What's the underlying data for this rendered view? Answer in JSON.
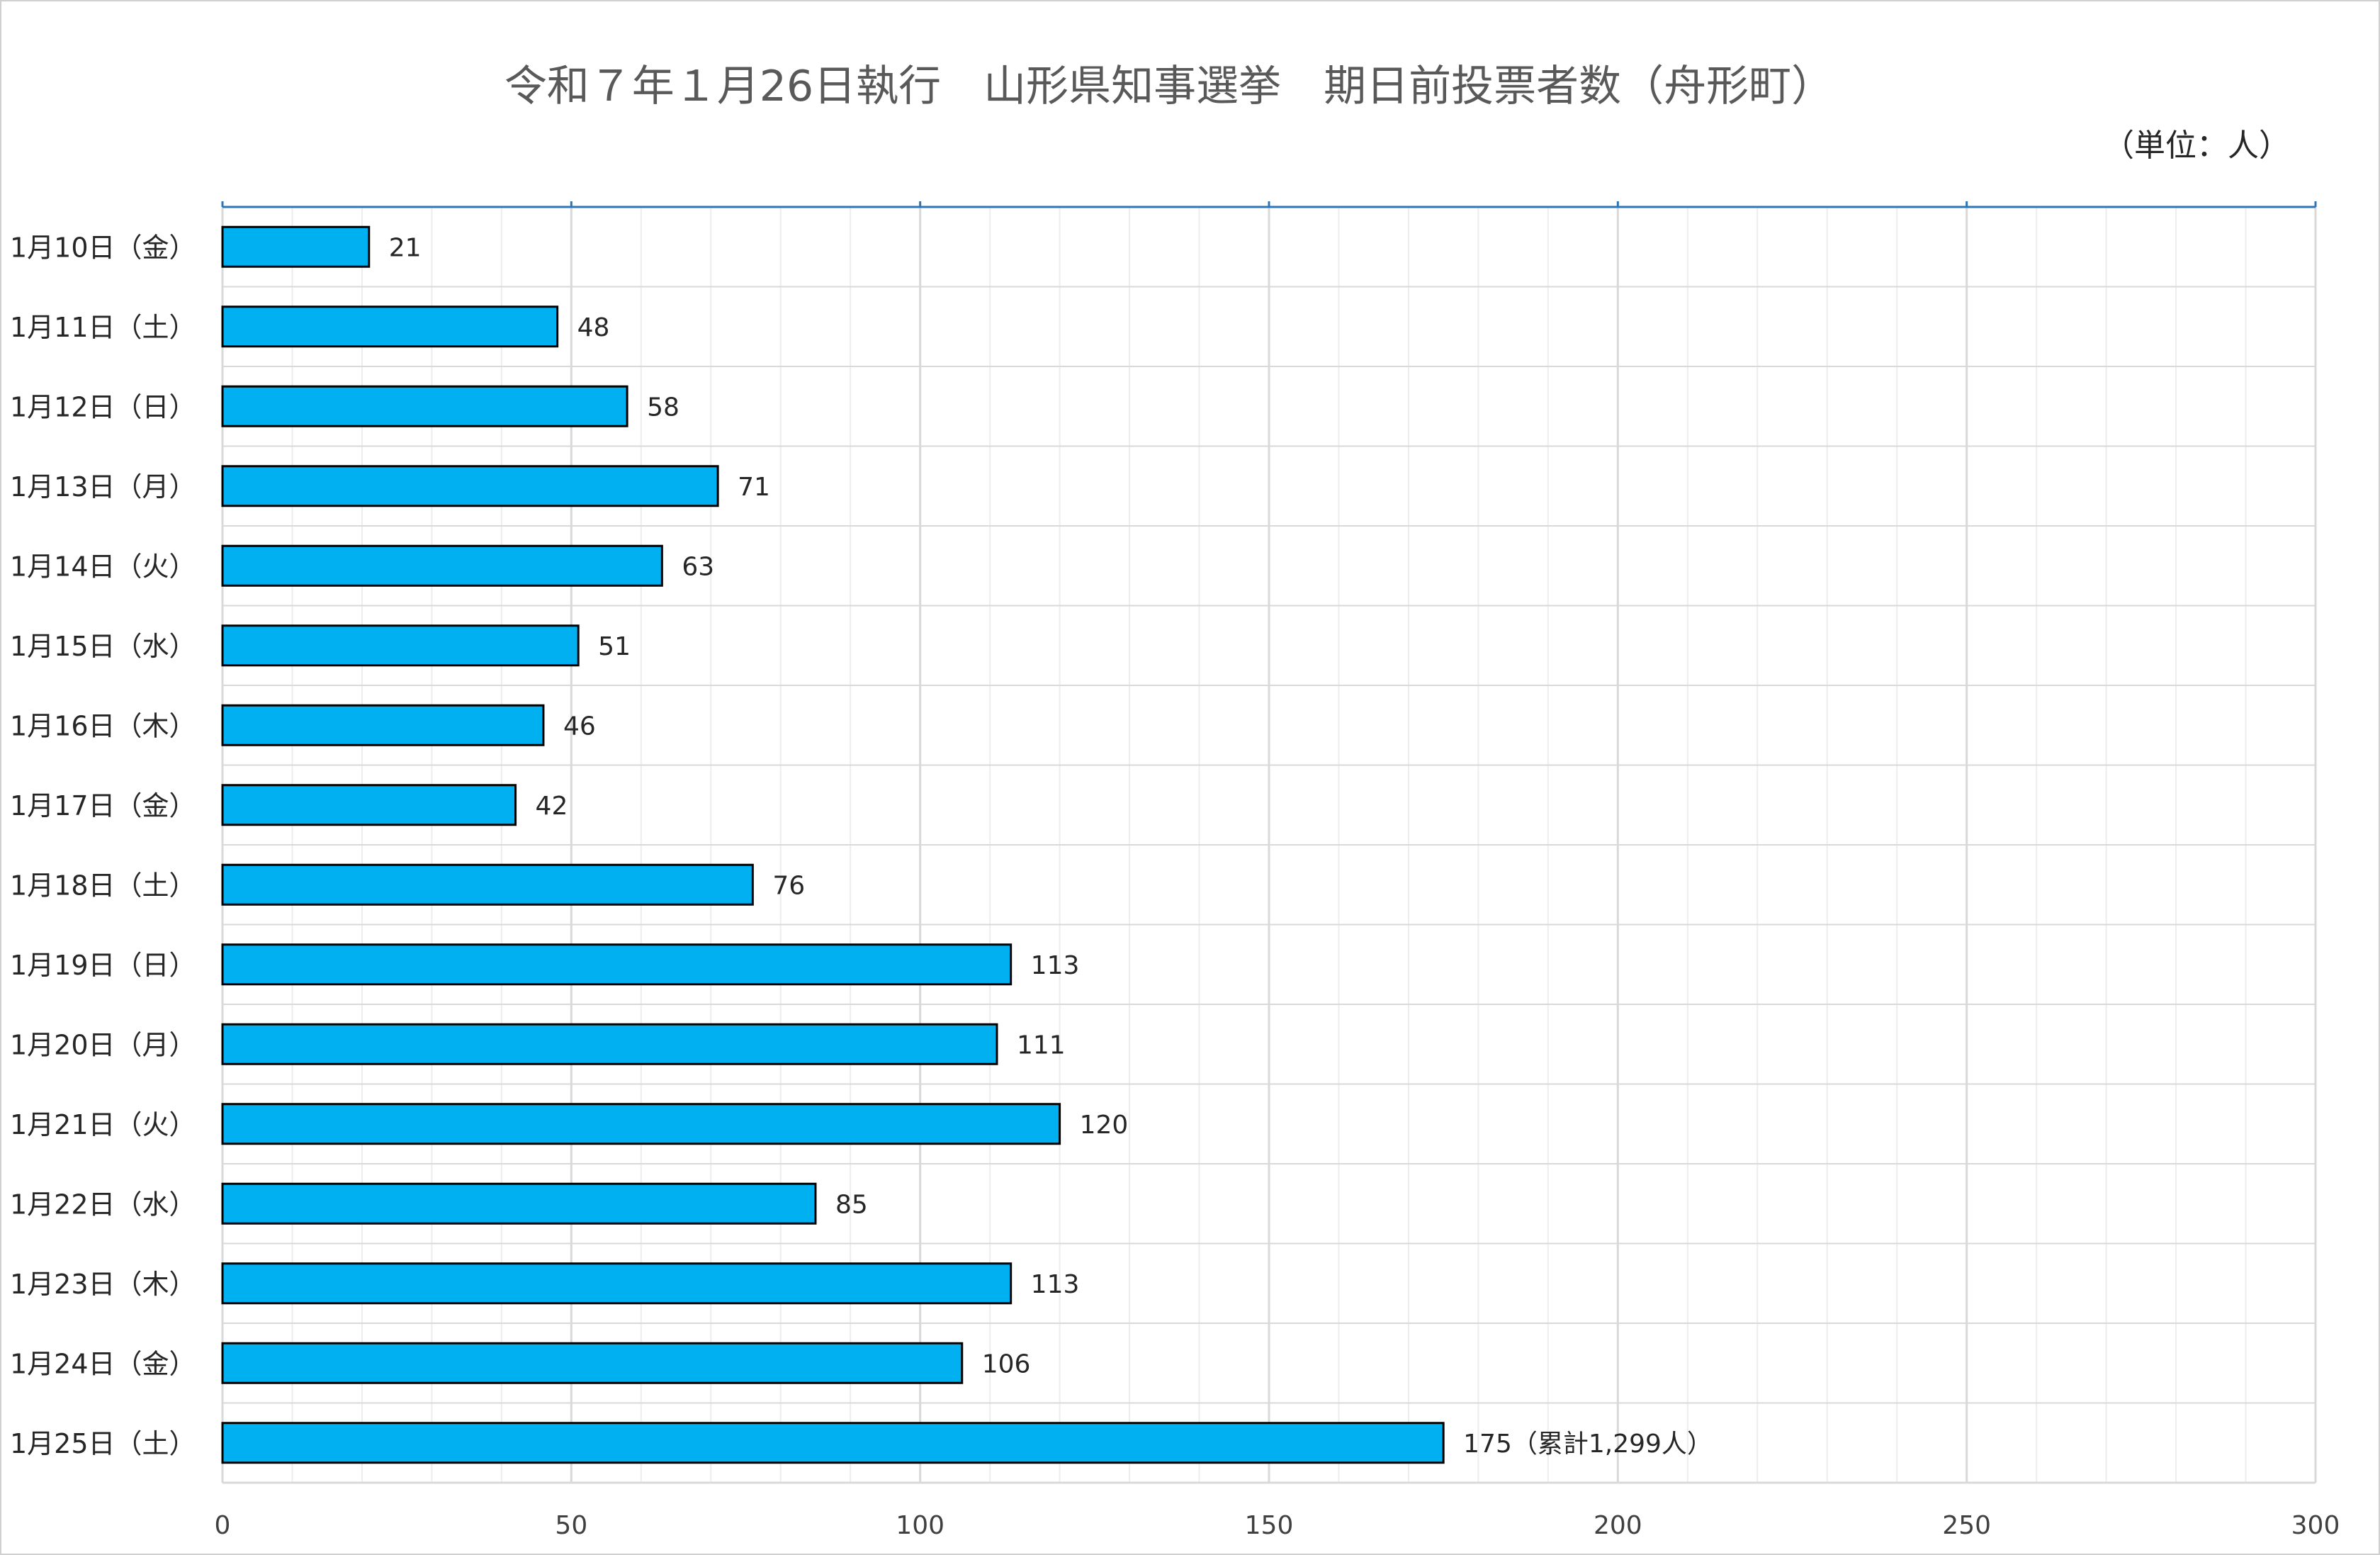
{
  "chart_data": {
    "type": "bar",
    "orientation": "horizontal",
    "title": "令和７年１月26日執行　山形県知事選挙　期日前投票者数（舟形町）",
    "unit_note": "（単位：人）",
    "categories": [
      "1月10日（金）",
      "1月11日（土）",
      "1月12日（日）",
      "1月13日（月）",
      "1月14日（火）",
      "1月15日（水）",
      "1月16日（木）",
      "1月17日（金）",
      "1月18日（土）",
      "1月19日（日）",
      "1月20日（月）",
      "1月21日（火）",
      "1月22日（水）",
      "1月23日（木）",
      "1月24日（金）",
      "1月25日（土）"
    ],
    "values": [
      21,
      48,
      58,
      71,
      63,
      51,
      46,
      42,
      76,
      113,
      111,
      120,
      85,
      113,
      106,
      175
    ],
    "data_labels": [
      "21",
      "48",
      "58",
      "71",
      "63",
      "51",
      "46",
      "42",
      "76",
      "113",
      "111",
      "120",
      "85",
      "113",
      "106",
      "175（累計1,299人）"
    ],
    "xlim": [
      0,
      300
    ],
    "x_ticks": [
      0,
      50,
      100,
      150,
      200,
      250,
      300
    ],
    "x_tick_labels": [
      "0",
      "50",
      "100",
      "150",
      "200",
      "250",
      "300"
    ],
    "x_minor_step": 10,
    "grid": true,
    "legend": "none",
    "colors": {
      "bar_fill": "#00b0f0",
      "bar_stroke": "#000000",
      "major_grid": "#d9d9d9",
      "minor_grid": "#ededed",
      "top_axis": "#2e75b6",
      "title": "#595959"
    }
  }
}
